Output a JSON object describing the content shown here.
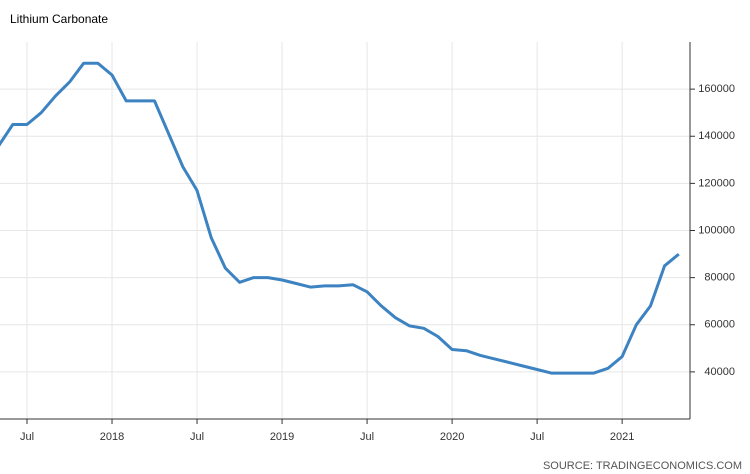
{
  "chart_data": {
    "type": "line",
    "title": "Lithium Carbonate",
    "source": "SOURCE: TRADINGECONOMICS.COM",
    "categories": [
      null,
      null,
      "Jul",
      null,
      null,
      null,
      null,
      null,
      "2018",
      null,
      null,
      null,
      null,
      null,
      "Jul",
      null,
      null,
      null,
      null,
      null,
      "2019",
      null,
      null,
      null,
      null,
      null,
      "Jul",
      null,
      null,
      null,
      null,
      null,
      "2020",
      null,
      null,
      null,
      null,
      null,
      "Jul",
      null,
      null,
      null,
      null,
      null,
      "2021",
      null,
      null,
      null,
      null
    ],
    "series": [
      {
        "name": "Lithium Carbonate",
        "color": "#3d83c2",
        "values": [
          136000,
          145000,
          145000,
          150000,
          157000,
          163000,
          171000,
          171000,
          166000,
          155000,
          155000,
          155000,
          141000,
          127000,
          117000,
          97000,
          84000,
          78000,
          80000,
          80000,
          79000,
          77500,
          76000,
          76500,
          76500,
          77000,
          74000,
          68000,
          63000,
          59500,
          58500,
          55000,
          49500,
          49000,
          47000,
          45500,
          44000,
          42500,
          41000,
          39500,
          39500,
          39500,
          39500,
          41500,
          46500,
          60000,
          68000,
          85000,
          90000
        ]
      }
    ],
    "ylim": [
      20000,
      180000
    ],
    "yticks": [
      40000,
      60000,
      80000,
      100000,
      120000,
      140000,
      160000
    ],
    "grid": true
  }
}
